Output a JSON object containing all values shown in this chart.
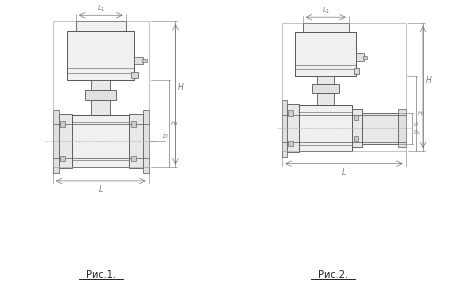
{
  "bg_color": "#ffffff",
  "line_color": "#555555",
  "dim_color": "#777777",
  "fig1_label": "Рис.1.",
  "fig2_label": "Рис.2."
}
